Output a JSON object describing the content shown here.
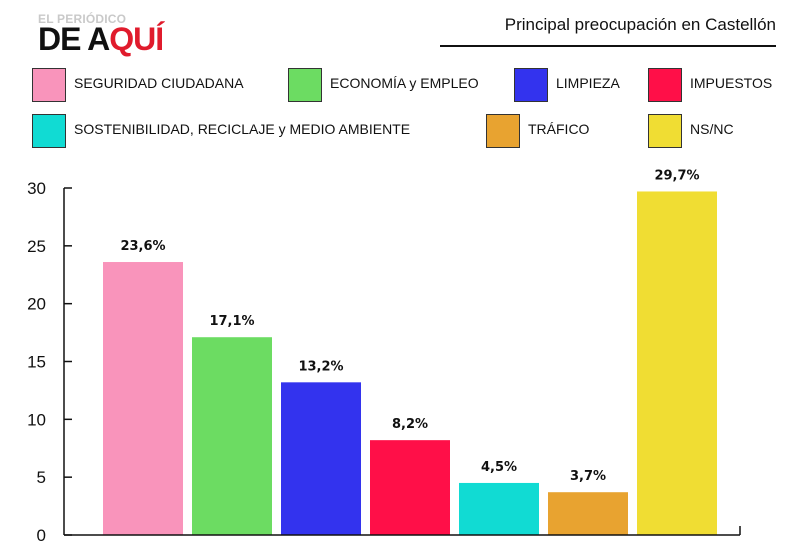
{
  "branding": {
    "top": "EL PERIÓDICO",
    "main_a": "DE A",
    "main_b": "QUÍ"
  },
  "chart_data": {
    "type": "bar",
    "title": "Principal preocupación  en Castellón",
    "categories": [
      "SEGURIDAD  CIUDADANA",
      "ECONOMÍA y EMPLEO",
      "LIMPIEZA",
      "IMPUESTOS",
      "SOSTENIBILIDAD, RECICLAJE y MEDIO AMBIENTE",
      "TRÁFICO",
      "NS/NC"
    ],
    "values": [
      23.6,
      17.1,
      13.2,
      8.2,
      4.5,
      3.7,
      29.7
    ],
    "value_labels": [
      "23,6%",
      "17,1%",
      "13,2%",
      "8,2%",
      "4,5%",
      "3,7%",
      "29,7%"
    ],
    "colors": [
      "#f994bb",
      "#6cdc62",
      "#3333ee",
      "#ff0f48",
      "#11dbd3",
      "#e8a330",
      "#f0dd33"
    ],
    "ylim": [
      0,
      30
    ],
    "yticks": [
      "0",
      "5",
      "10",
      "15",
      "20",
      "25",
      "30"
    ],
    "xlabel": "",
    "ylabel": "",
    "grid": false,
    "legend": "top"
  }
}
